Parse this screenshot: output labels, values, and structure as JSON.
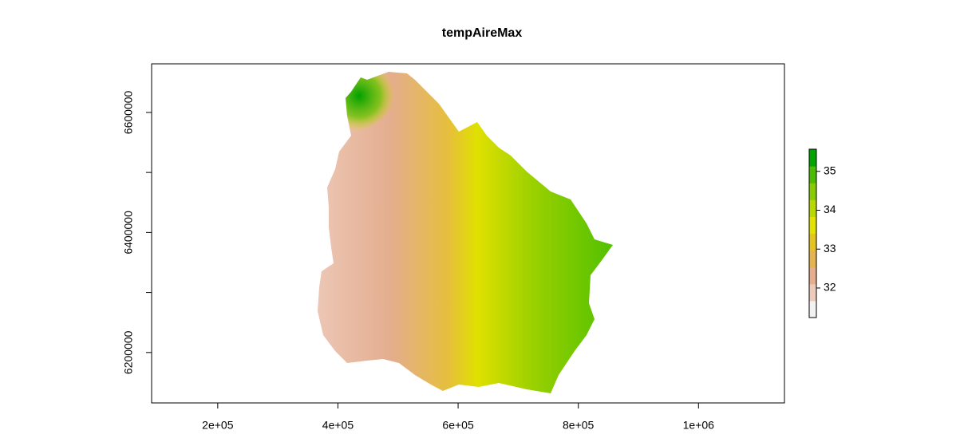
{
  "chart_data": {
    "type": "raster",
    "title": "tempAireMax",
    "xlim": [
      90000,
      1143000
    ],
    "xticks": [
      {
        "value": 200000,
        "label": "2e+05"
      },
      {
        "value": 400000,
        "label": "4e+05"
      },
      {
        "value": 600000,
        "label": "6e+05"
      },
      {
        "value": 800000,
        "label": "8e+05"
      },
      {
        "value": 1000000,
        "label": "1e+06"
      }
    ],
    "ylim": [
      6116000,
      6681000
    ],
    "yticks": [
      6200000,
      {
        "value": 6300000,
        "label": null
      },
      6400000,
      {
        "value": 6500000,
        "label": null
      },
      6600000
    ],
    "colorbar": {
      "lim": [
        31.24,
        35.57
      ],
      "ticks": [
        32,
        33,
        34,
        35
      ],
      "colors": [
        "#f2f2f2",
        "#eccbbb",
        "#e6ae8c",
        "#e6b44f",
        "#e6c41e",
        "#e2e200",
        "#b8d800",
        "#86cc00",
        "#4cbc00",
        "#00a600"
      ]
    }
  }
}
